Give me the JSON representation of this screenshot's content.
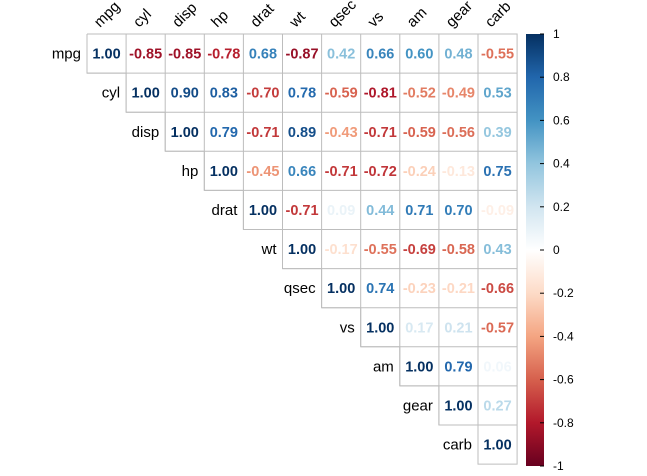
{
  "chart_data": {
    "type": "heatmap",
    "variables": [
      "mpg",
      "cyl",
      "disp",
      "hp",
      "drat",
      "wt",
      "qsec",
      "vs",
      "am",
      "gear",
      "carb"
    ],
    "matrix": [
      [
        1.0,
        -0.85,
        -0.85,
        -0.78,
        0.68,
        -0.87,
        0.42,
        0.66,
        0.6,
        0.48,
        -0.55
      ],
      [
        null,
        1.0,
        0.9,
        0.83,
        -0.7,
        0.78,
        -0.59,
        -0.81,
        -0.52,
        -0.49,
        0.53
      ],
      [
        null,
        null,
        1.0,
        0.79,
        -0.71,
        0.89,
        -0.43,
        -0.71,
        -0.59,
        -0.56,
        0.39
      ],
      [
        null,
        null,
        null,
        1.0,
        -0.45,
        0.66,
        -0.71,
        -0.72,
        -0.24,
        -0.13,
        0.75
      ],
      [
        null,
        null,
        null,
        null,
        1.0,
        -0.71,
        0.09,
        0.44,
        0.71,
        0.7,
        -0.09
      ],
      [
        null,
        null,
        null,
        null,
        null,
        1.0,
        -0.17,
        -0.55,
        -0.69,
        -0.58,
        0.43
      ],
      [
        null,
        null,
        null,
        null,
        null,
        null,
        1.0,
        0.74,
        -0.23,
        -0.21,
        -0.66
      ],
      [
        null,
        null,
        null,
        null,
        null,
        null,
        null,
        1.0,
        0.17,
        0.21,
        -0.57
      ],
      [
        null,
        null,
        null,
        null,
        null,
        null,
        null,
        null,
        1.0,
        0.79,
        0.06
      ],
      [
        null,
        null,
        null,
        null,
        null,
        null,
        null,
        null,
        null,
        1.0,
        0.27
      ],
      [
        null,
        null,
        null,
        null,
        null,
        null,
        null,
        null,
        null,
        null,
        1.0
      ]
    ],
    "triangle": "upper",
    "legend": {
      "placement": "right",
      "range": [
        -1,
        1
      ],
      "ticks": [
        "1",
        "0.8",
        "0.6",
        "0.4",
        "0.2",
        "0",
        "-0.2",
        "-0.4",
        "-0.6",
        "-0.8",
        "-1"
      ]
    },
    "colorscale": [
      "#67001F",
      "#B2182B",
      "#D6604D",
      "#F4A582",
      "#FDDBC7",
      "#FFFFFF",
      "#D1E5F0",
      "#92C5DE",
      "#4393C3",
      "#2166AC",
      "#053061"
    ],
    "grid": true
  }
}
